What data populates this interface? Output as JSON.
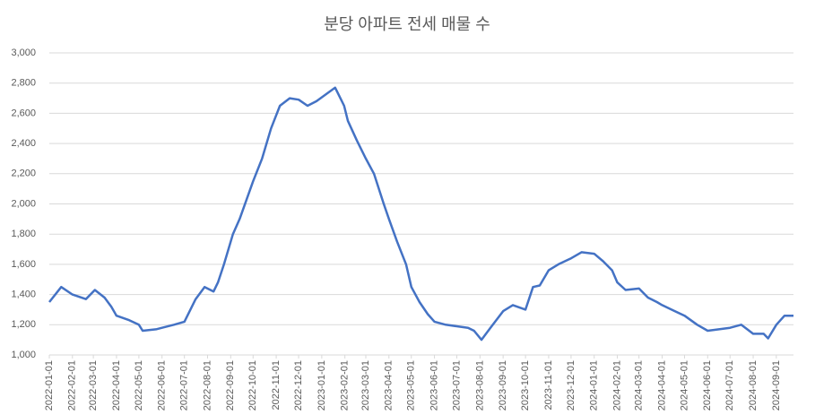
{
  "chart_data": {
    "type": "line",
    "title": "분당 아파트 전세 매물 수",
    "x": [
      "2022-01-01",
      "2022-01-17",
      "2022-02-01",
      "2022-02-19",
      "2022-03-03",
      "2022-03-16",
      "2022-03-25",
      "2022-04-01",
      "2022-04-18",
      "2022-05-01",
      "2022-05-06",
      "2022-05-24",
      "2022-06-01",
      "2022-06-17",
      "2022-07-01",
      "2022-07-16",
      "2022-07-28",
      "2022-08-09",
      "2022-08-15",
      "2022-08-23",
      "2022-09-04",
      "2022-09-13",
      "2022-10-01",
      "2022-10-13",
      "2022-10-25",
      "2022-11-06",
      "2022-11-19",
      "2022-12-01",
      "2022-12-13",
      "2022-12-25",
      "2023-01-19",
      "2023-01-31",
      "2023-02-05",
      "2023-02-17",
      "2023-03-01",
      "2023-03-12",
      "2023-03-25",
      "2023-04-01",
      "2023-04-12",
      "2023-04-24",
      "2023-05-01",
      "2023-05-12",
      "2023-05-23",
      "2023-06-01",
      "2023-06-16",
      "2023-07-01",
      "2023-07-16",
      "2023-07-24",
      "2023-08-03",
      "2023-08-15",
      "2023-09-01",
      "2023-09-14",
      "2023-10-01",
      "2023-10-11",
      "2023-10-20",
      "2023-11-01",
      "2023-11-14",
      "2023-12-01",
      "2023-12-15",
      "2024-01-01",
      "2024-01-13",
      "2024-01-25",
      "2024-02-01",
      "2024-02-12",
      "2024-03-01",
      "2024-03-13",
      "2024-03-25",
      "2024-04-01",
      "2024-04-18",
      "2024-05-01",
      "2024-05-18",
      "2024-06-01",
      "2024-06-16",
      "2024-07-01",
      "2024-07-16",
      "2024-08-01",
      "2024-08-15",
      "2024-08-21",
      "2024-09-01",
      "2024-09-12",
      "2024-09-24"
    ],
    "series": [
      {
        "name": "분당",
        "color": "#4472c4",
        "values": [
          1350,
          1450,
          1400,
          1370,
          1430,
          1380,
          1320,
          1260,
          1230,
          1200,
          1160,
          1170,
          1180,
          1200,
          1220,
          1370,
          1450,
          1420,
          1480,
          1600,
          1800,
          1900,
          2150,
          2300,
          2500,
          2650,
          2700,
          2690,
          2650,
          2680,
          2770,
          2650,
          2550,
          2420,
          2300,
          2200,
          2000,
          1900,
          1750,
          1600,
          1450,
          1350,
          1270,
          1220,
          1200,
          1190,
          1180,
          1160,
          1100,
          1180,
          1290,
          1330,
          1300,
          1450,
          1460,
          1560,
          1600,
          1640,
          1680,
          1670,
          1620,
          1560,
          1480,
          1430,
          1440,
          1380,
          1350,
          1330,
          1290,
          1260,
          1200,
          1160,
          1170,
          1180,
          1200,
          1140,
          1140,
          1110,
          1200,
          1260,
          1260
        ]
      }
    ],
    "xlim": [
      "2022-01-01",
      "2024-09-30"
    ],
    "xticks": [
      "2022-01-01",
      "2022-02-01",
      "2022-03-01",
      "2022-04-01",
      "2022-05-01",
      "2022-06-01",
      "2022-07-01",
      "2022-08-01",
      "2022-09-01",
      "2022-10-01",
      "2022-11-01",
      "2022-12-01",
      "2023-01-01",
      "2023-02-01",
      "2023-03-01",
      "2023-04-01",
      "2023-05-01",
      "2023-06-01",
      "2023-07-01",
      "2023-08-01",
      "2023-09-01",
      "2023-10-01",
      "2023-11-01",
      "2023-12-01",
      "2024-01-01",
      "2024-02-01",
      "2024-03-01",
      "2024-04-01",
      "2024-05-01",
      "2024-06-01",
      "2024-07-01",
      "2024-08-01",
      "2024-09-01"
    ],
    "ylim": [
      1000,
      3000
    ],
    "yticks": [
      {
        "value": 1000,
        "label": "1,000"
      },
      {
        "value": 1200,
        "label": "1,200"
      },
      {
        "value": 1400,
        "label": "1,400"
      },
      {
        "value": 1600,
        "label": "1,600"
      },
      {
        "value": 1800,
        "label": "1,800"
      },
      {
        "value": 2000,
        "label": "2,000"
      },
      {
        "value": 2200,
        "label": "2,200"
      },
      {
        "value": 2400,
        "label": "2,400"
      },
      {
        "value": 2600,
        "label": "2,600"
      },
      {
        "value": 2800,
        "label": "2,800"
      },
      {
        "value": 3000,
        "label": "3,000"
      }
    ],
    "grid": true
  }
}
